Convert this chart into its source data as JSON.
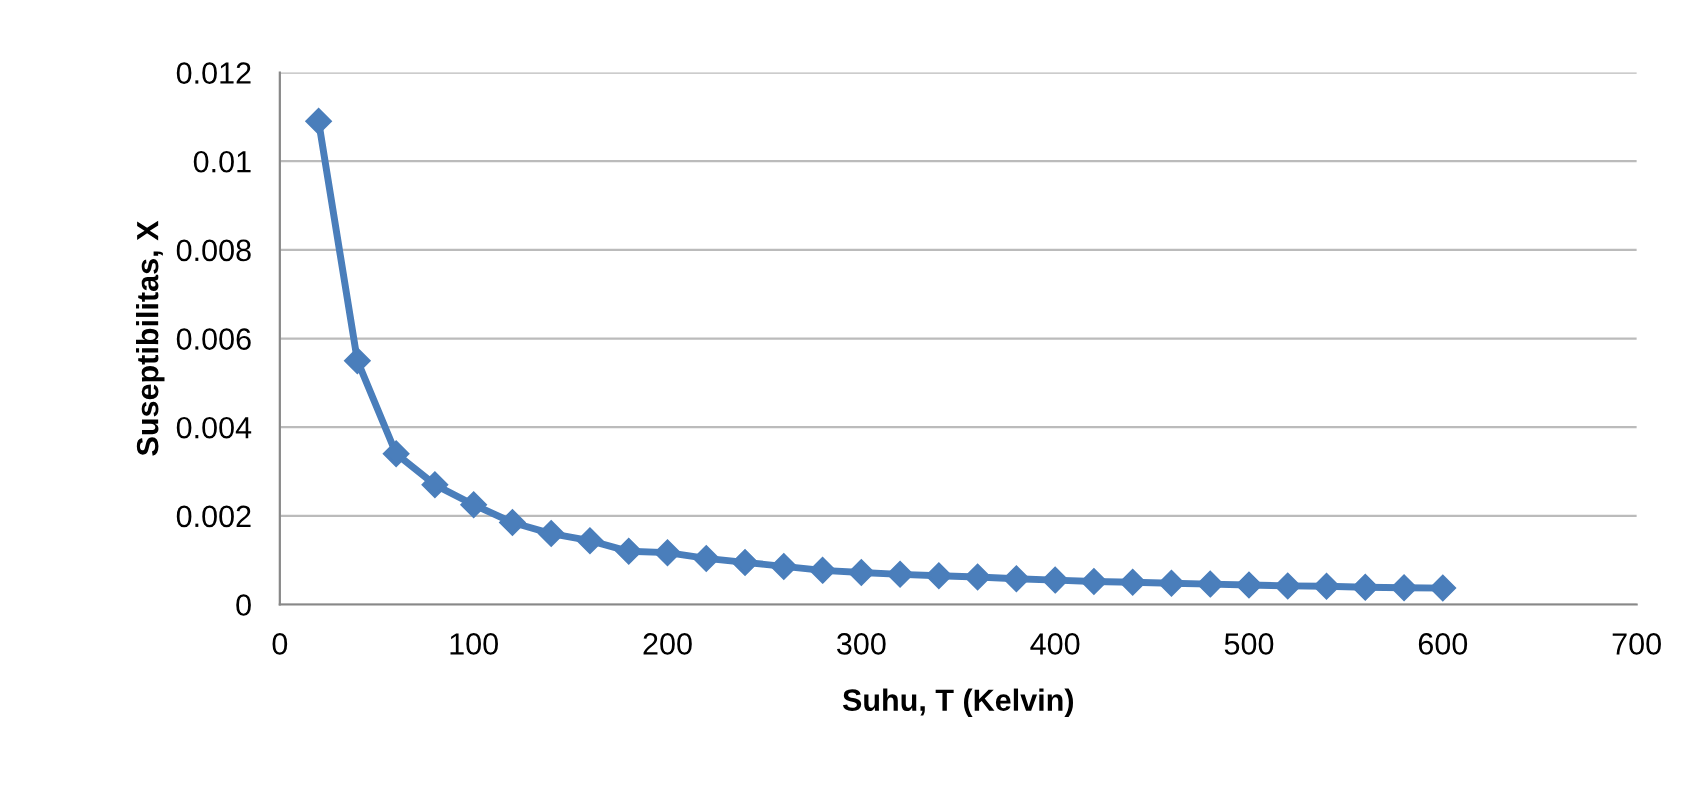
{
  "chart_data": {
    "type": "line",
    "xlabel": "Suhu, T (Kelvin)",
    "ylabel": "Suseptibilitas, X",
    "x": [
      20,
      40,
      60,
      80,
      100,
      120,
      140,
      160,
      180,
      200,
      220,
      240,
      260,
      280,
      300,
      320,
      340,
      360,
      380,
      400,
      420,
      440,
      460,
      480,
      500,
      520,
      540,
      560,
      580,
      600
    ],
    "series": [
      {
        "color": "#4a7ebb",
        "values": [
          0.0109,
          0.0055,
          0.0034,
          0.0027,
          0.00225,
          0.00185,
          0.0016,
          0.00144,
          0.0012,
          0.00117,
          0.00104,
          0.00095,
          0.00086,
          0.00077,
          0.00072,
          0.00068,
          0.00065,
          0.00062,
          0.00058,
          0.00055,
          0.00052,
          0.0005,
          0.00048,
          0.00046,
          0.00044,
          0.00042,
          0.00041,
          0.00039,
          0.00038,
          0.00037
        ]
      }
    ],
    "xlim": [
      0,
      700
    ],
    "xticks": [
      0,
      100,
      200,
      300,
      400,
      500,
      600,
      700
    ],
    "ylim": [
      0,
      0.012
    ],
    "yticks": [
      {
        "value": 0,
        "label": "0"
      },
      {
        "value": 0.002,
        "label": "0.002"
      },
      {
        "value": 0.004,
        "label": "0.004"
      },
      {
        "value": 0.006,
        "label": "0.006"
      },
      {
        "value": 0.008,
        "label": "0.008"
      },
      {
        "value": 0.01,
        "label": "0.01"
      },
      {
        "value": 0.012,
        "label": "0.012"
      }
    ],
    "grid": "y",
    "marker": "diamond",
    "line_style": "solid"
  }
}
